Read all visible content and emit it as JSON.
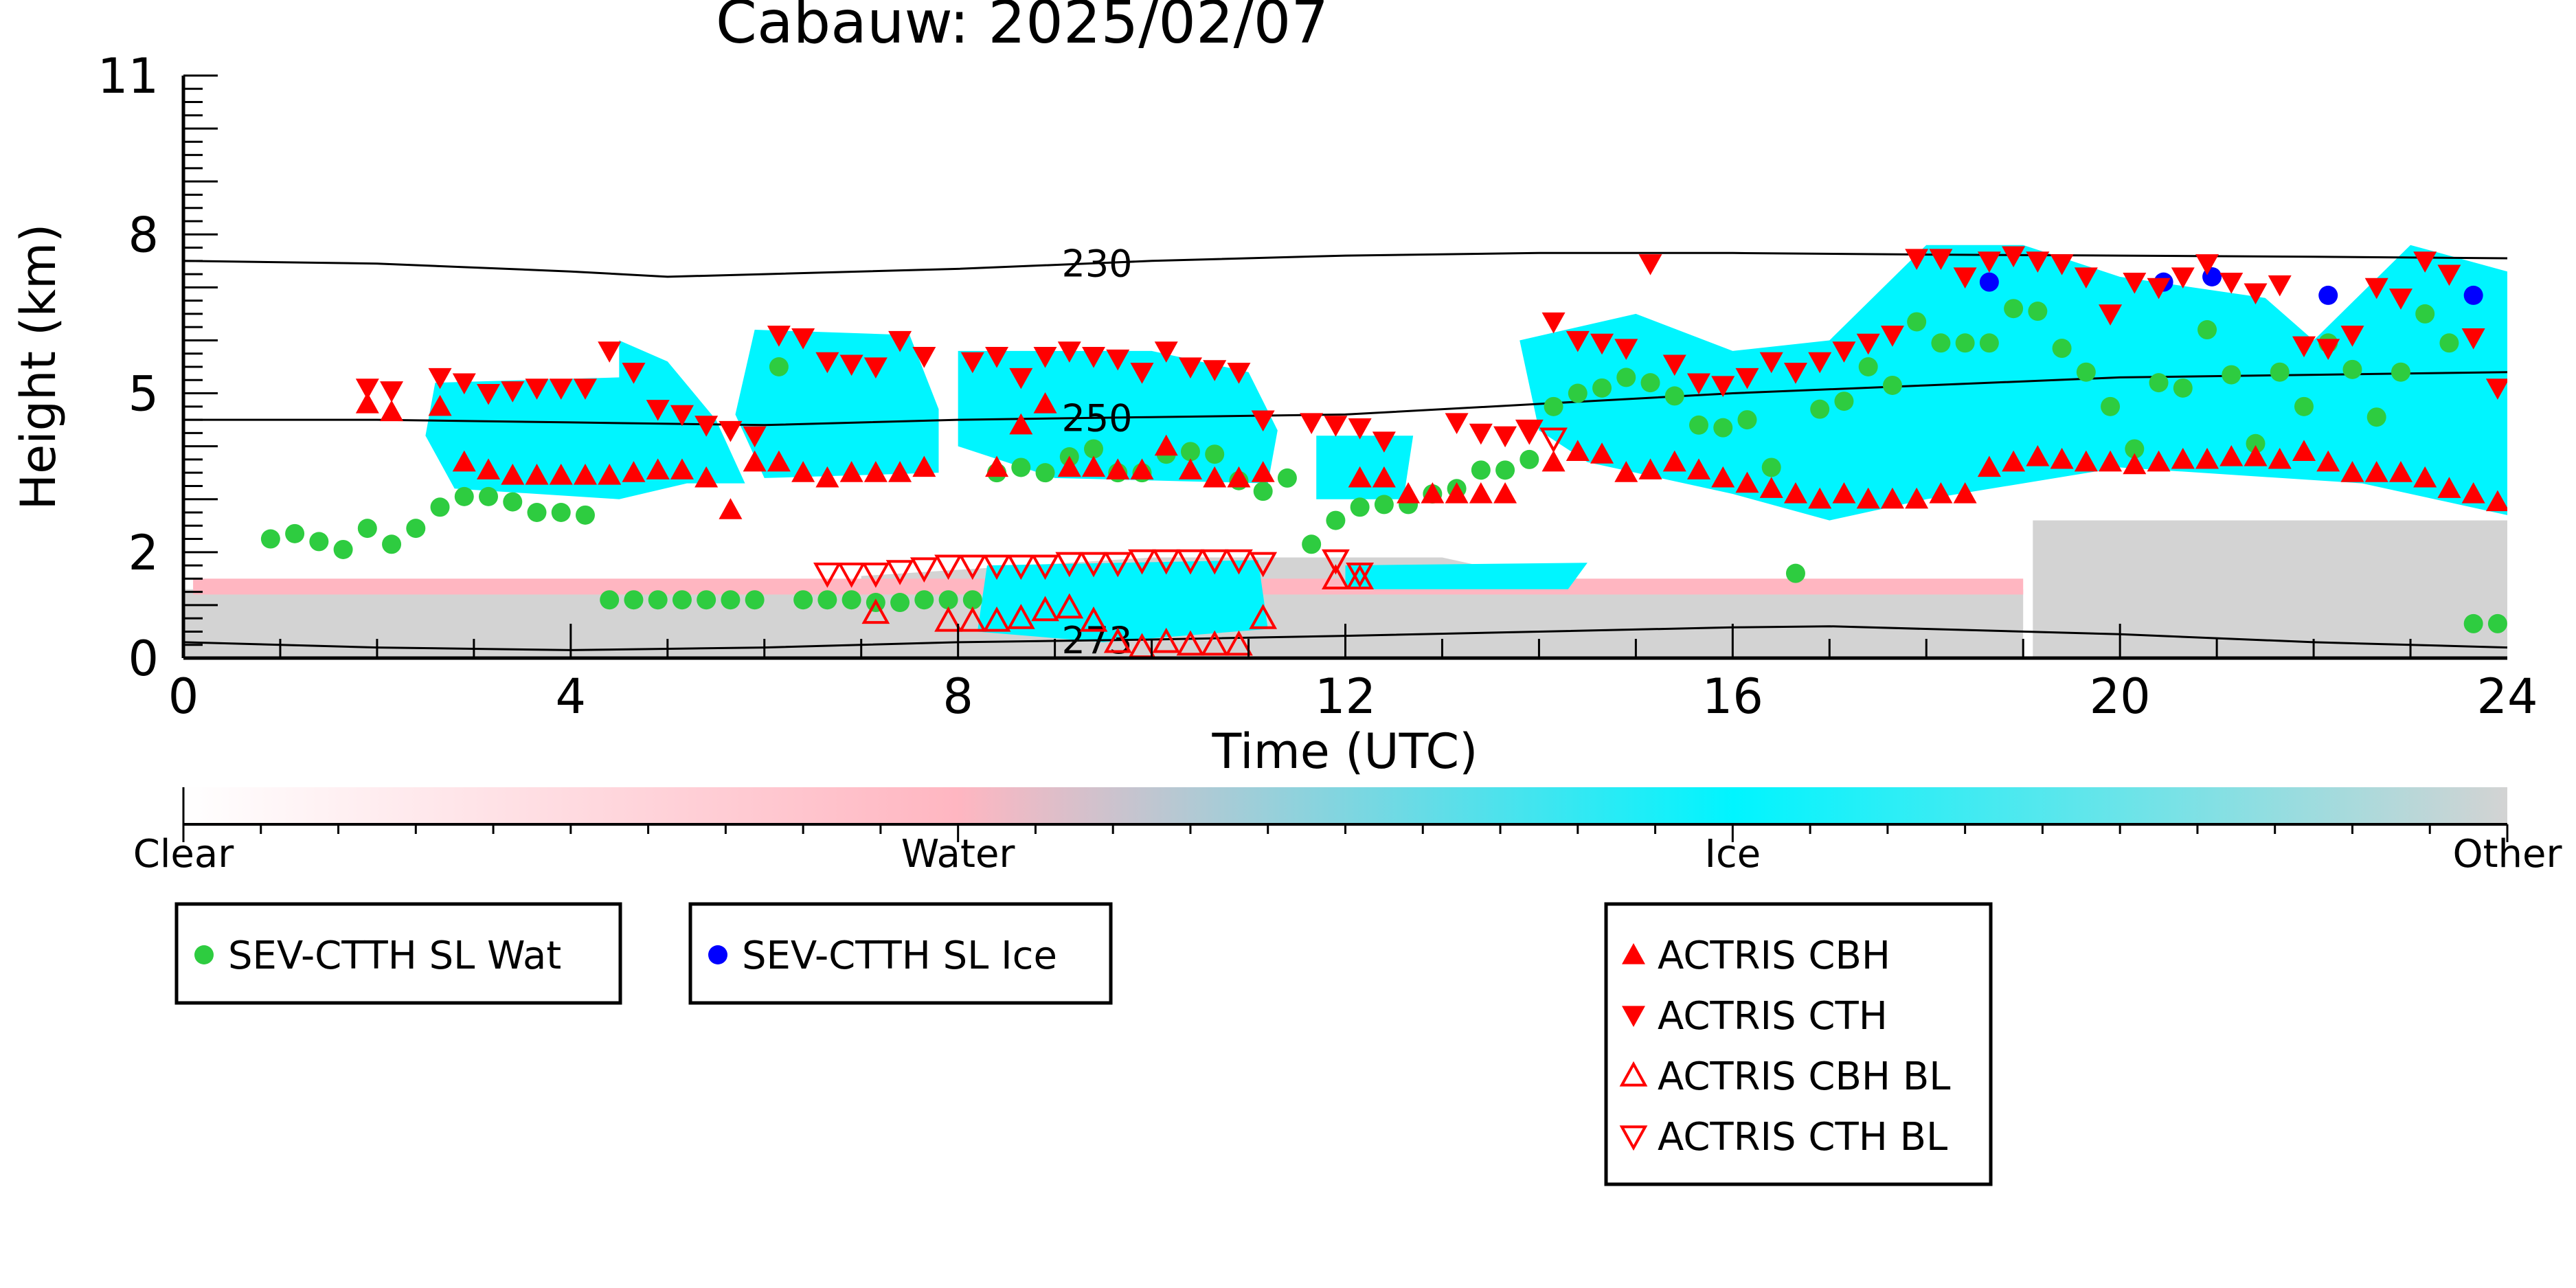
{
  "chart_data": {
    "type": "scatter",
    "title": "Cabauw: 2025/02/07",
    "xlabel": "Time (UTC)",
    "ylabel": "Height (km)",
    "xlim": [
      0,
      24
    ],
    "ylim": [
      0,
      11
    ],
    "x_ticks": [
      "0",
      "4",
      "8",
      "12",
      "16",
      "20",
      "24"
    ],
    "y_ticks": [
      "0",
      "2",
      "5",
      "8",
      "11"
    ],
    "background": "cloud classification (Clear / Water / Ice / Other), with temperature contours",
    "contours": [
      {
        "label": "230",
        "x": [
          0,
          2,
          4,
          5,
          6,
          8,
          10,
          12,
          14,
          16,
          18,
          20,
          22,
          24
        ],
        "y": [
          7.5,
          7.45,
          7.3,
          7.2,
          7.25,
          7.35,
          7.5,
          7.6,
          7.65,
          7.65,
          7.62,
          7.6,
          7.58,
          7.55
        ]
      },
      {
        "label": "250",
        "x": [
          0,
          2,
          4,
          6,
          8,
          10,
          12,
          14,
          16,
          18,
          20,
          22,
          24
        ],
        "y": [
          4.5,
          4.5,
          4.45,
          4.4,
          4.5,
          4.55,
          4.6,
          4.8,
          5.0,
          5.15,
          5.3,
          5.35,
          5.4
        ]
      },
      {
        "label": "273",
        "x": [
          0,
          2,
          4,
          6,
          8,
          10,
          12,
          14,
          16,
          17,
          20,
          22,
          24
        ],
        "y": [
          0.3,
          0.2,
          0.15,
          0.2,
          0.3,
          0.35,
          0.42,
          0.5,
          0.58,
          0.6,
          0.45,
          0.3,
          0.2
        ]
      }
    ],
    "colorbar": {
      "labels": [
        "Clear",
        "Water",
        "Ice",
        "Other"
      ],
      "colors": [
        "#ffffff",
        "#ffb6c1",
        "#00f5ff",
        "#d3d3d3"
      ]
    },
    "series": [
      {
        "name": "SEV-CTTH SL Wat",
        "marker": "circle",
        "color": "#2ecc40",
        "x": [
          0.9,
          1.15,
          1.4,
          1.65,
          1.9,
          2.15,
          2.4,
          2.65,
          2.9,
          3.15,
          3.4,
          3.65,
          3.9,
          4.15,
          4.4,
          4.65,
          4.9,
          5.15,
          5.4,
          5.65,
          5.9,
          6.15,
          6.4,
          6.65,
          6.9,
          7.15,
          7.4,
          7.65,
          7.9,
          8.15,
          8.4,
          8.65,
          8.9,
          9.15,
          9.4,
          9.65,
          9.9,
          10.15,
          10.4,
          10.65,
          10.9,
          11.15,
          11.4,
          11.65,
          11.9,
          12.15,
          12.4,
          12.65,
          12.9,
          13.15,
          13.4,
          13.65,
          13.9,
          14.15,
          14.4,
          14.65,
          14.9,
          15.15,
          15.4,
          15.65,
          15.9,
          16.15,
          16.4,
          16.65,
          16.9,
          17.15,
          17.4,
          17.65,
          17.9,
          18.15,
          18.4,
          18.65,
          18.9,
          19.15,
          19.4,
          19.65,
          19.9,
          20.15,
          20.4,
          20.65,
          20.9,
          21.15,
          21.4,
          21.65,
          21.9,
          22.15,
          22.4,
          22.65,
          22.9,
          23.15,
          23.4,
          23.65,
          23.9
        ],
        "y": [
          2.25,
          2.35,
          2.2,
          2.05,
          2.45,
          2.15,
          2.45,
          2.85,
          3.05,
          3.05,
          2.95,
          2.75,
          2.75,
          2.7,
          1.1,
          1.1,
          1.1,
          1.1,
          1.1,
          1.1,
          1.1,
          5.5,
          1.1,
          1.1,
          1.1,
          1.05,
          1.05,
          1.1,
          1.1,
          1.1,
          3.5,
          3.6,
          3.5,
          3.8,
          3.95,
          3.5,
          3.5,
          3.85,
          3.9,
          3.85,
          3.35,
          3.15,
          3.4,
          2.15,
          2.6,
          2.85,
          2.9,
          2.9,
          3.1,
          3.2,
          3.55,
          3.55,
          3.75,
          4.75,
          5.0,
          5.1,
          5.3,
          5.2,
          4.95,
          4.4,
          4.35,
          4.5,
          3.6,
          1.6,
          4.7,
          4.85,
          5.5,
          5.15,
          6.35,
          5.95,
          5.95,
          5.95,
          6.6,
          6.55,
          5.85,
          5.4,
          4.75,
          3.95,
          5.2,
          5.1,
          6.2,
          5.35,
          4.05,
          5.4,
          4.75,
          5.95,
          5.45,
          4.55,
          5.4,
          6.5,
          5.95,
          0.65,
          0.65
        ]
      },
      {
        "name": "SEV-CTTH SL Ice",
        "marker": "circle",
        "color": "#0000ff",
        "x": [
          18.65,
          20.45,
          20.95,
          22.15,
          23.65
        ],
        "y": [
          7.1,
          7.1,
          7.2,
          6.85,
          6.85
        ]
      },
      {
        "name": "ACTRIS CBH",
        "marker": "triangle-up",
        "color": "#ff0000",
        "x": [
          1.9,
          2.15,
          2.65,
          2.9,
          3.15,
          3.4,
          3.65,
          3.9,
          4.15,
          4.4,
          4.65,
          4.9,
          5.15,
          5.4,
          5.65,
          5.9,
          6.15,
          6.4,
          6.65,
          6.9,
          7.15,
          7.4,
          7.65,
          8.4,
          8.65,
          8.9,
          9.15,
          9.4,
          9.65,
          9.9,
          10.15,
          10.4,
          10.65,
          10.9,
          11.15,
          12.15,
          12.4,
          12.65,
          12.9,
          13.15,
          13.4,
          13.65,
          14.15,
          14.4,
          14.65,
          14.9,
          15.15,
          15.4,
          15.65,
          15.9,
          16.15,
          16.4,
          16.65,
          16.9,
          17.15,
          17.4,
          17.65,
          17.9,
          18.15,
          18.4,
          18.65,
          18.9,
          19.15,
          19.4,
          19.65,
          19.9,
          20.15,
          20.4,
          20.65,
          20.9,
          21.15,
          21.4,
          21.65,
          21.9,
          22.15,
          22.4,
          22.65,
          22.9,
          23.15,
          23.4,
          23.65,
          23.9
        ],
        "y": [
          4.8,
          4.65,
          4.75,
          3.7,
          3.55,
          3.45,
          3.45,
          3.45,
          3.45,
          3.45,
          3.5,
          3.55,
          3.55,
          3.4,
          2.8,
          3.7,
          3.7,
          3.5,
          3.4,
          3.5,
          3.5,
          3.5,
          3.6,
          3.6,
          4.4,
          4.8,
          3.6,
          3.6,
          3.55,
          3.55,
          4.0,
          3.55,
          3.4,
          3.4,
          3.5,
          3.4,
          3.4,
          3.1,
          3.1,
          3.1,
          3.1,
          3.1,
          3.7,
          3.9,
          3.85,
          3.5,
          3.55,
          3.7,
          3.55,
          3.4,
          3.3,
          3.2,
          3.1,
          3.0,
          3.1,
          3.0,
          3.0,
          3.0,
          3.1,
          3.1,
          3.6,
          3.7,
          3.8,
          3.75,
          3.7,
          3.7,
          3.65,
          3.7,
          3.75,
          3.75,
          3.8,
          3.8,
          3.75,
          3.9,
          3.7,
          3.5,
          3.5,
          3.5,
          3.4,
          3.2,
          3.1,
          2.95
        ]
      },
      {
        "name": "ACTRIS CTH",
        "marker": "triangle-down",
        "color": "#ff0000",
        "x": [
          1.9,
          2.15,
          2.65,
          2.9,
          3.15,
          3.4,
          3.65,
          3.9,
          4.15,
          4.4,
          4.65,
          4.9,
          5.15,
          5.4,
          5.65,
          5.9,
          6.15,
          6.4,
          6.65,
          6.9,
          7.15,
          7.4,
          7.65,
          8.15,
          8.4,
          8.65,
          8.9,
          9.15,
          9.4,
          9.65,
          9.9,
          10.15,
          10.4,
          10.65,
          10.9,
          11.15,
          11.65,
          11.9,
          12.15,
          12.4,
          13.15,
          13.4,
          13.65,
          13.9,
          14.15,
          14.4,
          14.65,
          14.9,
          15.15,
          15.4,
          15.65,
          15.9,
          16.15,
          16.4,
          16.65,
          16.9,
          17.15,
          17.4,
          17.65,
          17.9,
          18.15,
          18.4,
          18.65,
          18.9,
          19.15,
          19.4,
          19.65,
          19.9,
          20.15,
          20.4,
          20.65,
          20.9,
          21.15,
          21.4,
          21.65,
          21.9,
          22.15,
          22.4,
          22.65,
          22.9,
          23.15,
          23.4,
          23.65,
          23.9
        ],
        "y": [
          5.1,
          5.05,
          5.3,
          5.2,
          5.0,
          5.05,
          5.1,
          5.1,
          5.1,
          5.8,
          5.4,
          4.7,
          4.6,
          4.4,
          4.3,
          4.2,
          6.1,
          6.05,
          5.6,
          5.55,
          5.5,
          6.0,
          5.7,
          5.6,
          5.7,
          5.3,
          5.7,
          5.8,
          5.7,
          5.65,
          5.4,
          5.8,
          5.5,
          5.45,
          5.4,
          4.5,
          4.45,
          4.4,
          4.35,
          4.1,
          4.45,
          4.25,
          4.2,
          4.3,
          6.35,
          6.0,
          5.95,
          5.85,
          7.45,
          5.55,
          5.2,
          5.15,
          5.3,
          5.6,
          5.4,
          5.6,
          5.8,
          5.95,
          6.1,
          7.55,
          7.55,
          7.2,
          7.5,
          7.6,
          7.5,
          7.45,
          7.2,
          6.5,
          7.1,
          7.0,
          7.2,
          7.45,
          7.1,
          6.9,
          7.05,
          5.9,
          5.85,
          6.1,
          7.0,
          6.8,
          7.5,
          7.25,
          6.05,
          5.1
        ]
      },
      {
        "name": "ACTRIS CBH BL",
        "marker": "triangle-up-open",
        "color": "#ff0000",
        "x": [
          7.15,
          7.9,
          8.15,
          8.4,
          8.65,
          8.9,
          9.15,
          9.4,
          9.65,
          9.9,
          10.15,
          10.4,
          10.65,
          10.9,
          11.15,
          11.9,
          12.15
        ],
        "y": [
          0.85,
          0.7,
          0.7,
          0.7,
          0.75,
          0.9,
          0.95,
          0.7,
          0.3,
          0.2,
          0.3,
          0.25,
          0.25,
          0.25,
          0.75,
          1.5,
          1.5
        ]
      },
      {
        "name": "ACTRIS CTH BL",
        "marker": "triangle-down-open",
        "color": "#ff0000",
        "x": [
          6.65,
          6.9,
          7.15,
          7.4,
          7.65,
          7.9,
          8.15,
          8.4,
          8.65,
          8.9,
          9.15,
          9.4,
          9.65,
          9.9,
          10.15,
          10.4,
          10.65,
          10.9,
          11.15,
          11.9,
          12.15,
          13.9,
          14.15
        ],
        "y": [
          1.6,
          1.6,
          1.6,
          1.65,
          1.7,
          1.75,
          1.75,
          1.75,
          1.75,
          1.75,
          1.8,
          1.8,
          1.8,
          1.85,
          1.85,
          1.85,
          1.85,
          1.85,
          1.8,
          1.85,
          1.6,
          4.3,
          4.15
        ]
      }
    ]
  }
}
